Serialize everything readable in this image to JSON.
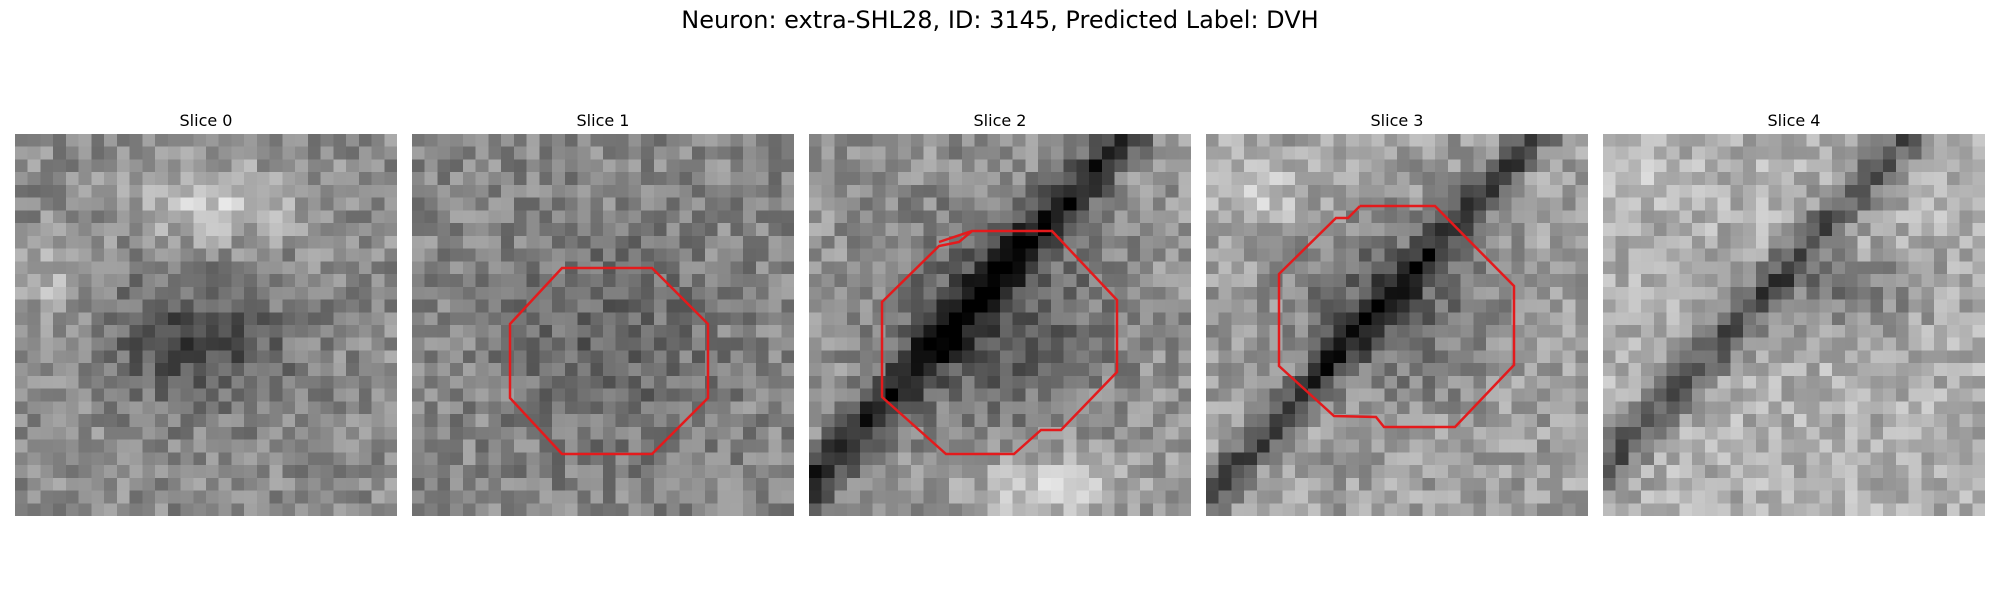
{
  "figure": {
    "title": "Neuron: extra-SHL28, ID: 3145, Predicted Label: DVH"
  },
  "slices": [
    {
      "label": "Slice 0",
      "has_outline": false
    },
    {
      "label": "Slice 1",
      "has_outline": true
    },
    {
      "label": "Slice 2",
      "has_outline": true
    },
    {
      "label": "Slice 3",
      "has_outline": true
    },
    {
      "label": "Slice 4",
      "has_outline": false
    }
  ],
  "colors": {
    "outline": "#e41a1c",
    "background": "#ffffff"
  }
}
